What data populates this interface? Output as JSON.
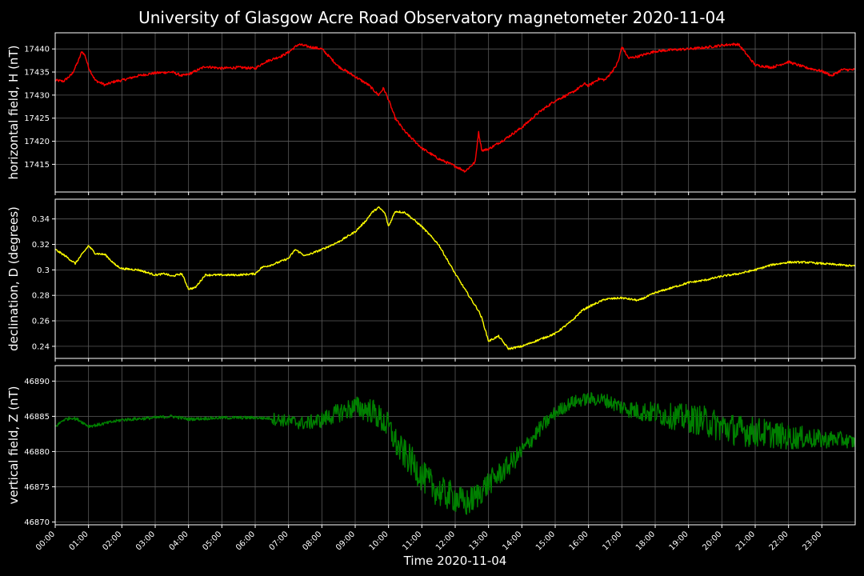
{
  "title": "University of Glasgow Acre Road Observatory magnetometer 2020-11-04",
  "xlabel": "Time 2020-11-04",
  "xticks": [
    "00:00",
    "01:00",
    "02:00",
    "03:00",
    "04:00",
    "05:00",
    "06:00",
    "07:00",
    "08:00",
    "09:00",
    "10:00",
    "11:00",
    "12:00",
    "13:00",
    "14:00",
    "15:00",
    "16:00",
    "17:00",
    "18:00",
    "19:00",
    "20:00",
    "21:00",
    "22:00",
    "23:00"
  ],
  "chart_data": [
    {
      "type": "line",
      "ylabel": "horizontal field, H (nT)",
      "color": "#ff0000",
      "xlim": [
        0,
        24
      ],
      "ylim": [
        17409,
        17443.5
      ],
      "yticks": [
        17415,
        17420,
        17425,
        17430,
        17435,
        17440
      ],
      "grid": true,
      "series": [
        {
          "x": [
            0,
            0.25,
            0.5,
            0.7,
            0.8,
            0.9,
            1.0,
            1.2,
            1.5,
            1.8,
            2.0,
            2.5,
            3.0,
            3.5,
            3.8,
            4.0,
            4.5,
            5.0,
            5.5,
            6.0,
            6.3,
            6.8,
            7.0,
            7.3,
            7.6,
            8.0,
            8.2,
            8.5,
            9.0,
            9.4,
            9.7,
            9.85,
            10.0,
            10.2,
            10.5,
            11.0,
            11.5,
            12.0,
            12.3,
            12.6,
            12.7,
            12.8,
            13.0,
            13.5,
            14.0,
            14.5,
            15.0,
            15.5,
            15.9,
            16.0,
            16.3,
            16.5,
            16.8,
            16.9,
            17.0,
            17.2,
            17.5,
            18.0,
            18.5,
            19.0,
            19.5,
            20.0,
            20.3,
            20.5,
            20.7,
            21.0,
            21.5,
            22.0,
            22.5,
            23.0,
            23.3,
            23.6,
            24.0
          ],
          "y": [
            17433.2,
            17433.0,
            17434.5,
            17437.5,
            17439.5,
            17438.5,
            17436,
            17433.2,
            17432.2,
            17433,
            17433.2,
            17434.2,
            17434.8,
            17435,
            17434.2,
            17434.5,
            17436.2,
            17435.8,
            17436,
            17435.8,
            17437.2,
            17438.5,
            17439.3,
            17441,
            17440.5,
            17440,
            17438.5,
            17436.2,
            17434,
            17432.2,
            17430,
            17431.5,
            17429,
            17425,
            17422,
            17418.5,
            17416.2,
            17414.6,
            17413.5,
            17415.5,
            17422,
            17418,
            17418.3,
            17420.5,
            17423,
            17426.2,
            17428.8,
            17430.5,
            17432.5,
            17432,
            17433.5,
            17433.3,
            17436,
            17437.5,
            17440.5,
            17438,
            17438.4,
            17439.5,
            17439.8,
            17440,
            17440.3,
            17440.8,
            17441,
            17441,
            17439.2,
            17436.5,
            17436,
            17437.2,
            17436,
            17435.2,
            17434.2,
            17435.5,
            17435.5
          ]
        }
      ]
    },
    {
      "type": "line",
      "ylabel": "declination, D (degrees)",
      "color": "#ffff00",
      "xlim": [
        0,
        24
      ],
      "ylim": [
        0.2305,
        0.3555
      ],
      "yticks": [
        0.24,
        0.26,
        0.28,
        0.3,
        0.32,
        0.34
      ],
      "grid": true,
      "series": [
        {
          "x": [
            0,
            0.3,
            0.6,
            0.8,
            1.0,
            1.2,
            1.5,
            1.8,
            2.0,
            2.5,
            3.0,
            3.3,
            3.5,
            3.8,
            4.0,
            4.2,
            4.5,
            5.0,
            5.5,
            6.0,
            6.2,
            6.5,
            7.0,
            7.2,
            7.5,
            8.0,
            8.5,
            9.0,
            9.3,
            9.5,
            9.7,
            9.8,
            9.9,
            10.0,
            10.2,
            10.5,
            11.0,
            11.5,
            12.0,
            12.5,
            12.7,
            12.8,
            13.0,
            13.3,
            13.6,
            14.0,
            14.5,
            15.0,
            15.5,
            15.8,
            16.0,
            16.5,
            17.0,
            17.5,
            18.0,
            18.5,
            19.0,
            19.5,
            20.0,
            20.5,
            21.0,
            21.5,
            22.0,
            22.5,
            23.0,
            23.5,
            24.0
          ],
          "y": [
            0.316,
            0.311,
            0.305,
            0.312,
            0.319,
            0.313,
            0.312,
            0.304,
            0.301,
            0.3,
            0.296,
            0.297,
            0.295,
            0.297,
            0.285,
            0.286,
            0.296,
            0.296,
            0.296,
            0.297,
            0.302,
            0.304,
            0.309,
            0.316,
            0.311,
            0.316,
            0.322,
            0.33,
            0.338,
            0.345,
            0.349,
            0.347,
            0.344,
            0.334,
            0.346,
            0.345,
            0.334,
            0.32,
            0.297,
            0.276,
            0.268,
            0.262,
            0.244,
            0.248,
            0.238,
            0.24,
            0.245,
            0.25,
            0.26,
            0.268,
            0.271,
            0.277,
            0.278,
            0.276,
            0.282,
            0.286,
            0.29,
            0.292,
            0.295,
            0.297,
            0.3,
            0.304,
            0.306,
            0.306,
            0.305,
            0.304,
            0.303
          ]
        }
      ]
    },
    {
      "type": "line",
      "ylabel": "vertical field, Z (nT)",
      "color": "#008000",
      "xlim": [
        0,
        24
      ],
      "ylim": [
        46869.6,
        46892.2
      ],
      "yticks": [
        46870,
        46875,
        46880,
        46885,
        46890
      ],
      "grid": true,
      "series": [
        {
          "x": [
            0,
            0.25,
            0.5,
            0.7,
            1.0,
            1.3,
            2.0,
            3.0,
            3.5,
            4.0,
            5.0,
            6.0,
            6.5,
            7.0,
            7.5,
            8.0,
            8.5,
            9.0,
            9.5,
            10.0,
            10.3,
            10.7,
            11.0,
            11.5,
            12.0,
            12.3,
            12.6,
            13.0,
            13.5,
            14.0,
            14.5,
            15.0,
            15.5,
            16.0,
            16.5,
            17.0,
            17.5,
            18.0,
            18.5,
            19.0,
            19.5,
            20.0,
            20.5,
            21.0,
            21.5,
            22.0,
            22.5,
            23.0,
            23.5,
            24.0
          ],
          "y": [
            46883.5,
            46884.5,
            46884.8,
            46884.5,
            46883.6,
            46883.8,
            46884.5,
            46884.8,
            46885,
            46884.6,
            46884.8,
            46884.8,
            46884.7,
            46884.3,
            46884,
            46884.5,
            46885.5,
            46886.3,
            46885.8,
            46883.5,
            46880.5,
            46878.5,
            46876.5,
            46874.3,
            46873.5,
            46872.5,
            46873.5,
            46875.5,
            46877.5,
            46880,
            46883,
            46885.5,
            46887,
            46887.5,
            46887.3,
            46886.3,
            46885.7,
            46885.5,
            46885,
            46884.7,
            46884.3,
            46883.5,
            46883,
            46882.8,
            46882.5,
            46882,
            46882,
            46881.7,
            46881.8,
            46881.3
          ]
        }
      ]
    }
  ]
}
